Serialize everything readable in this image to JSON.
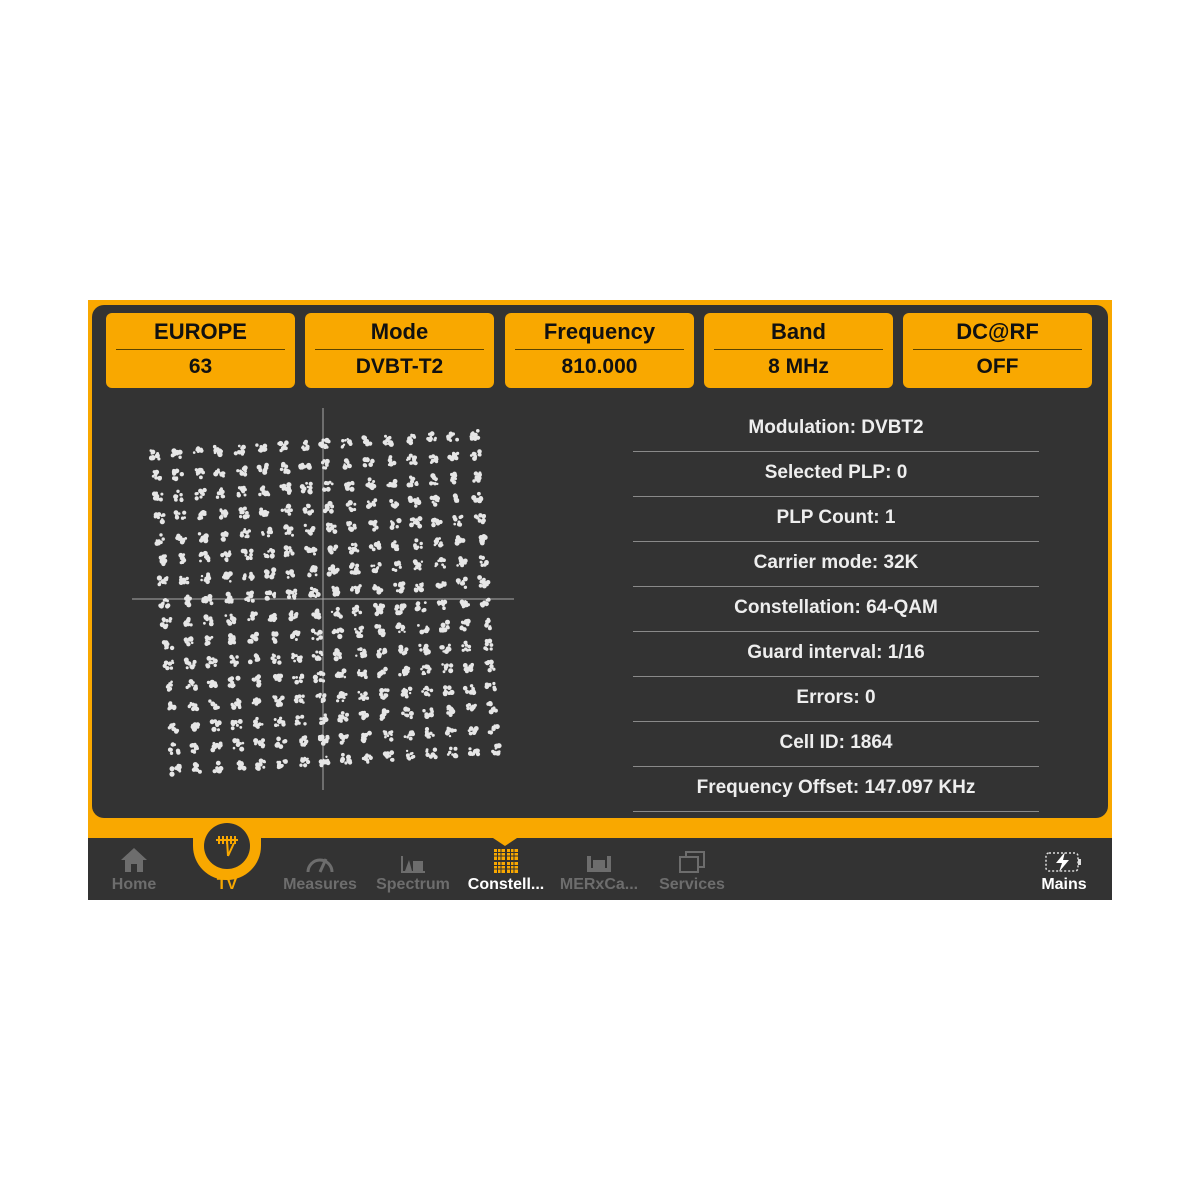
{
  "header": [
    {
      "title": "EUROPE",
      "value": "63"
    },
    {
      "title": "Mode",
      "value": "DVBT-T2"
    },
    {
      "title": "Frequency",
      "value": "810.000"
    },
    {
      "title": "Band",
      "value": "8 MHz"
    },
    {
      "title": "DC@RF",
      "value": "OFF"
    }
  ],
  "info": [
    "Modulation: DVBT2",
    "Selected PLP: 0",
    "PLP Count: 1",
    "Carrier mode: 32K",
    "Constellation: 64-QAM",
    "Guard interval: 1/16",
    "Errors: 0",
    "Cell ID: 1864",
    "Frequency Offset: 147.097 KHz"
  ],
  "nav": [
    {
      "label": "Home",
      "icon": "home-icon"
    },
    {
      "label": "TV",
      "icon": "antenna-icon",
      "active": true
    },
    {
      "label": "Measures",
      "icon": "gauge-icon"
    },
    {
      "label": "Spectrum",
      "icon": "spectrum-icon"
    },
    {
      "label": "Constell...",
      "icon": "constellation-icon",
      "selected": true
    },
    {
      "label": "MERxCa...",
      "icon": "mer-carrier-icon"
    },
    {
      "label": "Services",
      "icon": "services-icon"
    }
  ],
  "power": {
    "label": "Mains",
    "icon": "battery-charging-icon"
  },
  "colors": {
    "accent": "#f9a800",
    "panel": "#333333",
    "text": "#eeeeee",
    "inactive": "#6d6d6d"
  }
}
